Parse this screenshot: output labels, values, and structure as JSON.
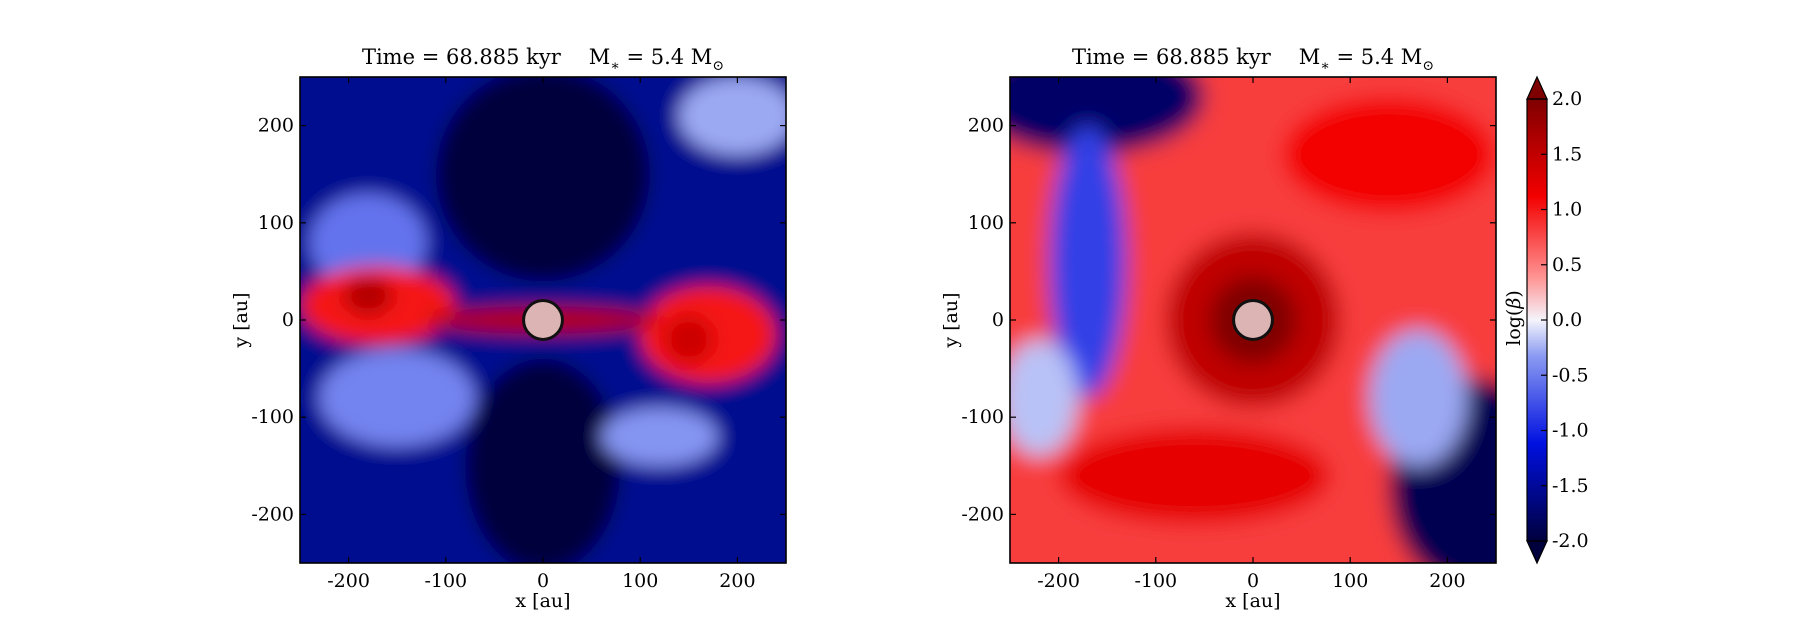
{
  "colors": {
    "deep_blue": "#00003d",
    "blue": "#0010e0",
    "light_blue": "#8c9cf2",
    "white": "#f4f4fb",
    "light_red": "#ff9090",
    "red": "#f30000",
    "dark_red": "#7f0000",
    "sink": "#dcb4b4"
  },
  "chart_data": [
    {
      "type": "heatmap",
      "panel": "left",
      "title": "Time = 68.885 kyr    M$_*$ = 5.4 M$_\\odot$",
      "title_parts": {
        "time": "Time = 68.885 kyr",
        "mass_lhs": "M",
        "mass_sub": "∗",
        "mass_eq": " = 5.4 M",
        "mass_unit_sub": "⊙"
      },
      "xlabel": "x [au]",
      "ylabel": "y [au]",
      "xlim": [
        -250,
        250
      ],
      "ylim": [
        -250,
        250
      ],
      "xticks": [
        -200,
        -100,
        0,
        100,
        200
      ],
      "yticks": [
        -200,
        -100,
        0,
        100,
        200
      ],
      "xtick_labels": [
        "-200",
        "-100",
        "0",
        "100",
        "200"
      ],
      "ytick_labels": [
        "-200",
        "-100",
        "0",
        "100",
        "200"
      ],
      "sink_particle": {
        "x": 0,
        "y": 0,
        "radius_au": 20
      },
      "features": [
        {
          "kind": "background",
          "value": -1.6
        },
        {
          "kind": "blob",
          "x": 0,
          "y": -150,
          "rx": 80,
          "ry": 110,
          "value": -2.0
        },
        {
          "kind": "blob",
          "x": 0,
          "y": 150,
          "rx": 110,
          "ry": 110,
          "value": -2.0
        },
        {
          "kind": "blob",
          "x": -180,
          "y": 80,
          "rx": 60,
          "ry": 50,
          "value": -0.6
        },
        {
          "kind": "blob",
          "x": -150,
          "y": -80,
          "rx": 80,
          "ry": 50,
          "value": -0.5
        },
        {
          "kind": "blob",
          "x": 120,
          "y": -120,
          "rx": 60,
          "ry": 30,
          "value": -0.4
        },
        {
          "kind": "blob",
          "x": 200,
          "y": 210,
          "rx": 60,
          "ry": 40,
          "value": -0.3
        },
        {
          "kind": "blob",
          "x": -170,
          "y": 15,
          "rx": 80,
          "ry": 40,
          "value": 1.0
        },
        {
          "kind": "blob",
          "x": 170,
          "y": -15,
          "rx": 70,
          "ry": 50,
          "value": 1.0
        },
        {
          "kind": "blob",
          "x": 0,
          "y": 0,
          "rx": 120,
          "ry": 14,
          "value": 1.6
        },
        {
          "kind": "blob",
          "x": -180,
          "y": 25,
          "rx": 25,
          "ry": 20,
          "value": 1.6
        },
        {
          "kind": "blob",
          "x": 150,
          "y": -20,
          "rx": 25,
          "ry": 25,
          "value": 1.4
        }
      ]
    },
    {
      "type": "heatmap",
      "panel": "right",
      "title": "Time = 68.885 kyr    M$_*$ = 5.4 M$_\\odot$",
      "title_parts": {
        "time": "Time = 68.885 kyr",
        "mass_lhs": "M",
        "mass_sub": "∗",
        "mass_eq": " = 5.4 M",
        "mass_unit_sub": "⊙"
      },
      "xlabel": "x [au]",
      "ylabel": "y [au]",
      "xlim": [
        -250,
        250
      ],
      "ylim": [
        -250,
        250
      ],
      "xticks": [
        -200,
        -100,
        0,
        100,
        200
      ],
      "yticks": [
        -200,
        -100,
        0,
        100,
        200
      ],
      "xtick_labels": [
        "-200",
        "-100",
        "0",
        "100",
        "200"
      ],
      "ytick_labels": [
        "-200",
        "-100",
        "0",
        "100",
        "200"
      ],
      "sink_particle": {
        "x": 0,
        "y": 0,
        "radius_au": 20
      },
      "features": [
        {
          "kind": "background",
          "value": 0.8
        },
        {
          "kind": "blob",
          "x": -170,
          "y": 230,
          "rx": 120,
          "ry": 60,
          "value": -1.8
        },
        {
          "kind": "blob",
          "x": 230,
          "y": -170,
          "rx": 90,
          "ry": 110,
          "value": -1.9
        },
        {
          "kind": "blob",
          "x": 170,
          "y": -80,
          "rx": 50,
          "ry": 70,
          "value": -0.3
        },
        {
          "kind": "blob",
          "x": -170,
          "y": 60,
          "rx": 40,
          "ry": 140,
          "value": -0.9
        },
        {
          "kind": "blob",
          "x": -220,
          "y": -80,
          "rx": 40,
          "ry": 60,
          "value": -0.2
        },
        {
          "kind": "blob",
          "x": 0,
          "y": 0,
          "rx": 90,
          "ry": 90,
          "value": 1.5
        },
        {
          "kind": "blob",
          "x": 0,
          "y": 0,
          "rx": 45,
          "ry": 45,
          "value": 2.0
        },
        {
          "kind": "blob",
          "x": -60,
          "y": -160,
          "rx": 140,
          "ry": 50,
          "value": 1.2
        },
        {
          "kind": "blob",
          "x": 140,
          "y": 170,
          "rx": 110,
          "ry": 60,
          "value": 1.1
        }
      ]
    }
  ],
  "colorbar": {
    "label": "log(β)",
    "label_main": "log(",
    "label_symbol": "β",
    "label_close": ")",
    "range": [
      -2.0,
      2.0
    ],
    "extend": "both",
    "ticks": [
      2.0,
      1.5,
      1.0,
      0.5,
      0.0,
      -0.5,
      -1.0,
      -1.5,
      -2.0
    ],
    "tick_labels": [
      "2.0",
      "1.5",
      "1.0",
      "0.5",
      "0.0",
      "-0.5",
      "-1.0",
      "-1.5",
      "-2.0"
    ]
  }
}
